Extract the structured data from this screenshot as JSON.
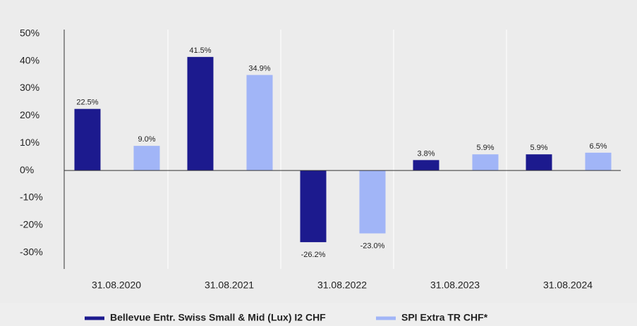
{
  "chart_data": {
    "type": "bar",
    "categories": [
      "31.08.2020",
      "31.08.2021",
      "31.08.2022",
      "31.08.2023",
      "31.08.2024"
    ],
    "series": [
      {
        "name": "Bellevue Entr. Swiss Small & Mid (Lux) I2 CHF",
        "color": "#1c1a8e",
        "values": [
          22.5,
          41.5,
          -26.2,
          3.8,
          5.9
        ],
        "value_labels": [
          "22.5%",
          "41.5%",
          "-26.2%",
          "3.8%",
          "5.9%"
        ]
      },
      {
        "name": "SPI Extra TR CHF*",
        "color": "#a1b5f7",
        "values": [
          9.0,
          34.9,
          -23.0,
          5.9,
          6.5
        ],
        "value_labels": [
          "9.0%",
          "34.9%",
          "-23.0%",
          "5.9%",
          "6.5%"
        ]
      }
    ],
    "ylim": [
      -36,
      51.5
    ],
    "yticks": [
      {
        "value": 50,
        "label": "50%"
      },
      {
        "value": 40,
        "label": "40%"
      },
      {
        "value": 30,
        "label": "30%"
      },
      {
        "value": 20,
        "label": "20%"
      },
      {
        "value": 10,
        "label": "10%"
      },
      {
        "value": 0,
        "label": "0%"
      },
      {
        "value": -10,
        "label": "-10%"
      },
      {
        "value": -20,
        "label": "-20%"
      },
      {
        "value": -30,
        "label": "-30%"
      }
    ],
    "legend": "bottom"
  }
}
